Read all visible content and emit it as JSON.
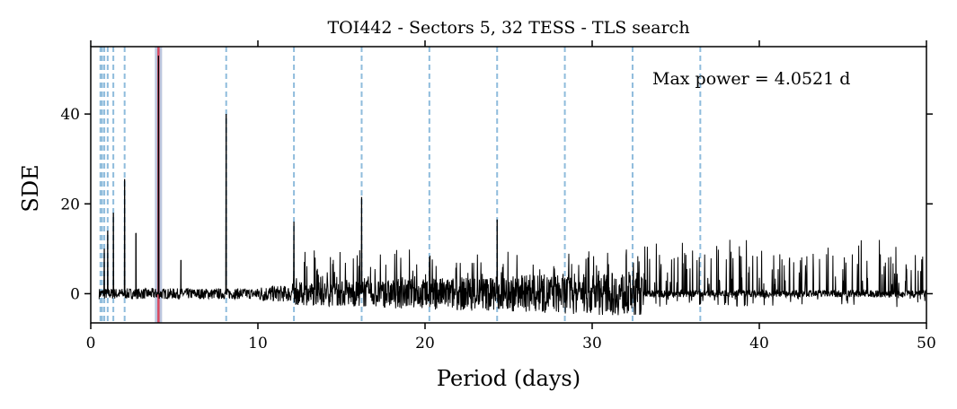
{
  "chart_data": {
    "type": "line",
    "title": "TOI442 - Sectors 5, 32 TESS - TLS search",
    "xlabel": "Period (days)",
    "ylabel": "SDE",
    "xlim": [
      0,
      50
    ],
    "ylim": [
      -6.5,
      55
    ],
    "xticks": [
      0,
      10,
      20,
      30,
      40,
      50
    ],
    "yticks": [
      0,
      20,
      40
    ],
    "grid": false,
    "annotation": "Max power = 4.0521 d",
    "best_period": 4.0521,
    "best_period_highlight_color": "#d9485f",
    "harmonic_line_color": "#8fbcdc",
    "harmonic_periods": [
      0.579,
      0.675,
      0.81,
      1.013,
      1.351,
      2.026,
      4.052,
      8.104,
      12.156,
      16.208,
      20.26,
      24.313,
      28.365,
      32.417,
      36.469
    ],
    "series": [
      {
        "color": "#000000",
        "peaks": [
          {
            "x": 0.81,
            "y": 10
          },
          {
            "x": 1.013,
            "y": 14
          },
          {
            "x": 1.351,
            "y": 18
          },
          {
            "x": 2.026,
            "y": 25.5
          },
          {
            "x": 2.7,
            "y": 13.5
          },
          {
            "x": 4.052,
            "y": 53
          },
          {
            "x": 5.4,
            "y": 7.5
          },
          {
            "x": 8.104,
            "y": 40
          },
          {
            "x": 12.156,
            "y": 16
          },
          {
            "x": 16.208,
            "y": 21.5
          },
          {
            "x": 24.313,
            "y": 16.5
          }
        ],
        "noise_baseline": 0
      }
    ]
  }
}
